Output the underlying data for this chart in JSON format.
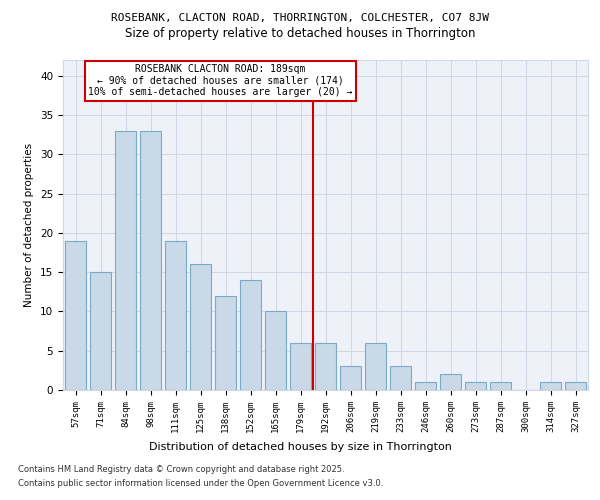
{
  "title1": "ROSEBANK, CLACTON ROAD, THORRINGTON, COLCHESTER, CO7 8JW",
  "title2": "Size of property relative to detached houses in Thorrington",
  "xlabel": "Distribution of detached houses by size in Thorrington",
  "ylabel": "Number of detached properties",
  "categories": [
    "57sqm",
    "71sqm",
    "84sqm",
    "98sqm",
    "111sqm",
    "125sqm",
    "138sqm",
    "152sqm",
    "165sqm",
    "179sqm",
    "192sqm",
    "206sqm",
    "219sqm",
    "233sqm",
    "246sqm",
    "260sqm",
    "273sqm",
    "287sqm",
    "300sqm",
    "314sqm",
    "327sqm"
  ],
  "values": [
    19,
    15,
    33,
    33,
    19,
    16,
    12,
    14,
    10,
    6,
    6,
    3,
    6,
    3,
    1,
    2,
    1,
    1,
    0,
    1,
    1
  ],
  "bar_color": "#c9d9e8",
  "bar_edge_color": "#7aaac8",
  "grid_color": "#d0d8e8",
  "background_color": "#eef2f8",
  "vline_x_index": 10,
  "vline_color": "#cc0000",
  "annotation_text": "ROSEBANK CLACTON ROAD: 189sqm\n← 90% of detached houses are smaller (174)\n10% of semi-detached houses are larger (20) →",
  "annotation_box_color": "#cc0000",
  "annotation_fontsize": 7.0,
  "ylim": [
    0,
    42
  ],
  "yticks": [
    0,
    5,
    10,
    15,
    20,
    25,
    30,
    35,
    40
  ],
  "footnote1": "Contains HM Land Registry data © Crown copyright and database right 2025.",
  "footnote2": "Contains public sector information licensed under the Open Government Licence v3.0.",
  "title1_fontsize": 8.0,
  "title2_fontsize": 8.5,
  "xlabel_fontsize": 8.0,
  "ylabel_fontsize": 7.5,
  "tick_fontsize": 6.5,
  "ytick_fontsize": 7.5,
  "footnote_fontsize": 6.0
}
